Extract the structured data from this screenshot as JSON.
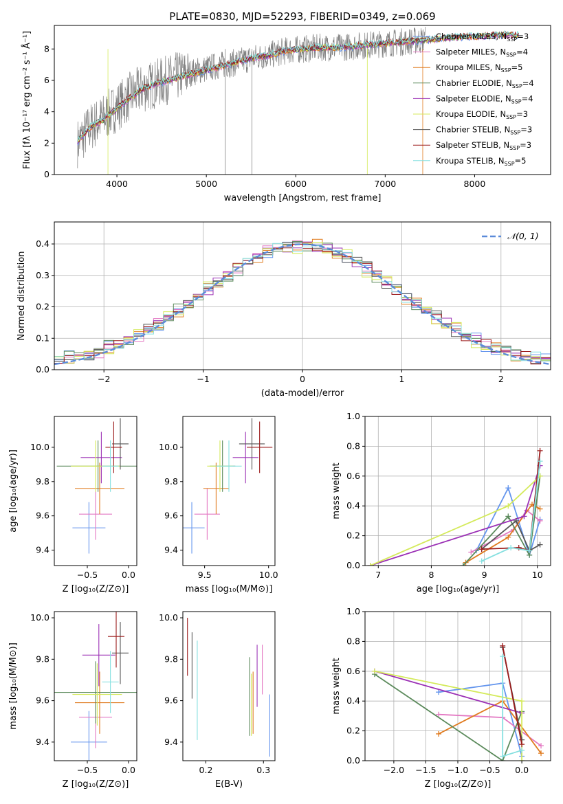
{
  "title": "PLATE=0830, MJD=52293, FIBERID=0349, z=0.069",
  "legend_spectrum": [
    {
      "name": "Chabrier MILES",
      "nssp": "3",
      "color": "#6495ed"
    },
    {
      "name": "Salpeter MILES",
      "nssp": "4",
      "color": "#e377c2"
    },
    {
      "name": "Kroupa MILES",
      "nssp": "5",
      "color": "#e07b1f"
    },
    {
      "name": "Chabrier ELODIE",
      "nssp": "4",
      "color": "#5b8a5b"
    },
    {
      "name": "Salpeter ELODIE",
      "nssp": "4",
      "color": "#9b30b5"
    },
    {
      "name": "Kroupa ELODIE",
      "nssp": "3",
      "color": "#d4ea5a"
    },
    {
      "name": "Chabrier STELIB",
      "nssp": "3",
      "color": "#555555"
    },
    {
      "name": "Salpeter STELIB",
      "nssp": "3",
      "color": "#9c1c1c"
    },
    {
      "name": "Kroupa STELIB",
      "nssp": "5",
      "color": "#86e0e0"
    }
  ],
  "colors": {
    "data": "#808080",
    "gaussian": "#5b8bd9",
    "grid": "#b0b0b0"
  },
  "chart_data": [
    {
      "id": "spectrum",
      "type": "line",
      "xlabel": "wavelength [Angstrom, rest frame]",
      "ylabel": "Flux [fλ 10⁻¹⁷ erg cm⁻² s⁻¹ Å⁻¹]",
      "xlim": [
        3300,
        8850
      ],
      "ylim": [
        0,
        9.5
      ],
      "grid": false,
      "legend": "right",
      "xticks": [
        4000,
        5000,
        6000,
        7000,
        8000
      ],
      "yticks": [
        0,
        2,
        4,
        6,
        8
      ],
      "observed": {
        "x": [
          3560,
          3700,
          3850,
          4000,
          4150,
          4300,
          4500,
          4700,
          4900,
          5100,
          5300,
          5500,
          5700,
          5900,
          6100,
          6300,
          6500,
          6700,
          6900,
          7100,
          7300,
          7450
        ],
        "y": [
          2.0,
          3.0,
          3.6,
          4.3,
          5.0,
          5.5,
          5.9,
          6.3,
          6.6,
          6.9,
          7.1,
          7.4,
          7.6,
          7.9,
          8.0,
          8.1,
          8.1,
          8.2,
          8.3,
          8.4,
          8.5,
          8.6
        ]
      },
      "model": {
        "x": [
          3560,
          3700,
          3850,
          4000,
          4150,
          4300,
          4500,
          4700,
          4900,
          5100,
          5300,
          5500,
          5700,
          5900,
          6100,
          6300,
          6500,
          6700,
          6900,
          7100,
          7300,
          7500,
          7700,
          7900,
          8100,
          8300,
          8500
        ],
        "y": [
          2.1,
          3.0,
          3.5,
          4.2,
          4.9,
          5.5,
          5.9,
          6.2,
          6.5,
          6.8,
          7.1,
          7.4,
          7.6,
          7.9,
          8.0,
          8.1,
          8.1,
          8.2,
          8.3,
          8.4,
          8.5,
          8.6,
          8.7,
          8.8,
          8.8,
          8.9,
          8.9
        ]
      }
    },
    {
      "id": "residuals",
      "type": "histogram",
      "xlabel": "(data-model)/error",
      "ylabel": "Normed distribution",
      "xlim": [
        -2.5,
        2.5
      ],
      "ylim": [
        0,
        0.47
      ],
      "grid": true,
      "legend": "top-right",
      "xticks": [
        -2,
        -1,
        0,
        1,
        2
      ],
      "yticks": [
        0.0,
        0.1,
        0.2,
        0.3,
        0.4
      ],
      "xtick_labels": [
        "−2",
        "−1",
        "0",
        "1",
        "2"
      ],
      "bin_width": 0.1,
      "bin_start": -2.5,
      "reference_curve": {
        "name": "𝒩(0, 1)",
        "mu": 0,
        "sigma": 1
      },
      "series_offsets": [
        0.012,
        -0.008,
        0.015,
        -0.012,
        0.006,
        -0.015,
        0.01,
        -0.004,
        0.008
      ]
    },
    {
      "id": "age_vs_Z",
      "type": "scatter",
      "xlabel": "Z [log₁₀(Z/Z⊙)]",
      "ylabel": "age  [log₁₀(age/yr)]",
      "xlim": [
        -0.9,
        0.1
      ],
      "ylim": [
        9.31,
        10.18
      ],
      "grid": false,
      "xticks": [
        -0.5,
        0.0
      ],
      "xtick_labels": [
        "−0.5",
        "0.0"
      ],
      "yticks": [
        9.4,
        9.6,
        9.8,
        10.0
      ],
      "points": [
        {
          "x": -0.48,
          "y": 9.53,
          "xerr": 0.2,
          "yerr": 0.06
        },
        {
          "x": -0.4,
          "y": 9.61,
          "xerr": 0.2,
          "yerr": 0.06
        },
        {
          "x": -0.35,
          "y": 9.76,
          "xerr": 0.3,
          "yerr": 0.06
        },
        {
          "x": -0.37,
          "y": 9.89,
          "xerr": 0.5,
          "yerr": 0.06
        },
        {
          "x": -0.33,
          "y": 9.94,
          "xerr": 0.25,
          "yerr": 0.06
        },
        {
          "x": -0.4,
          "y": 9.89,
          "xerr": 0.3,
          "yerr": 0.06
        },
        {
          "x": -0.1,
          "y": 10.02,
          "xerr": 0.1,
          "yerr": 0.06
        },
        {
          "x": -0.18,
          "y": 10.0,
          "xerr": 0.1,
          "yerr": 0.06
        },
        {
          "x": -0.22,
          "y": 9.89,
          "xerr": 0.1,
          "yerr": 0.06
        }
      ]
    },
    {
      "id": "age_vs_mass",
      "type": "scatter",
      "xlabel": "mass [log₁₀(M/M⊙)]",
      "ylabel": "",
      "xlim": [
        9.33,
        10.05
      ],
      "ylim": [
        9.31,
        10.18
      ],
      "grid": false,
      "xticks": [
        9.5,
        10.0
      ],
      "xtick_labels": [
        "9.5",
        "10.0"
      ],
      "yticks": [
        9.4,
        9.6,
        9.8,
        10.0
      ],
      "points": [
        {
          "x": 9.4,
          "y": 9.53,
          "xerr": 0.1,
          "yerr": 0.06
        },
        {
          "x": 9.52,
          "y": 9.61,
          "xerr": 0.1,
          "yerr": 0.06
        },
        {
          "x": 9.59,
          "y": 9.76,
          "xerr": 0.1,
          "yerr": 0.06
        },
        {
          "x": 9.64,
          "y": 9.89,
          "xerr": 0.1,
          "yerr": 0.06
        },
        {
          "x": 9.82,
          "y": 9.94,
          "xerr": 0.1,
          "yerr": 0.06
        },
        {
          "x": 9.62,
          "y": 9.89,
          "xerr": 0.1,
          "yerr": 0.06
        },
        {
          "x": 9.87,
          "y": 10.02,
          "xerr": 0.1,
          "yerr": 0.06
        },
        {
          "x": 9.93,
          "y": 10.0,
          "xerr": 0.1,
          "yerr": 0.06
        },
        {
          "x": 9.69,
          "y": 9.89,
          "xerr": 0.1,
          "yerr": 0.06
        }
      ]
    },
    {
      "id": "massweight_vs_age",
      "type": "line",
      "xlabel": "age  [log₁₀(age/yr)]",
      "ylabel": "mass weight",
      "xlim": [
        6.75,
        10.25
      ],
      "ylim": [
        0,
        1.0
      ],
      "grid": true,
      "xticks": [
        7,
        8,
        9,
        10
      ],
      "yticks": [
        0.0,
        0.2,
        0.4,
        0.6,
        0.8,
        1.0
      ],
      "series": [
        {
          "x": [
            8.85,
            9.45,
            9.85,
            10.05
          ],
          "y": [
            0.1,
            0.52,
            0.07,
            0.31
          ]
        },
        {
          "x": [
            8.75,
            9.55,
            9.8,
            10.05
          ],
          "y": [
            0.09,
            0.24,
            0.37,
            0.3
          ]
        },
        {
          "x": [
            8.65,
            9.45,
            9.9,
            10.05
          ],
          "y": [
            0.02,
            0.19,
            0.41,
            0.38
          ]
        },
        {
          "x": [
            8.6,
            9.45,
            9.85,
            10.05
          ],
          "y": [
            0.0,
            0.33,
            0.07,
            0.6
          ]
        },
        {
          "x": [
            6.85,
            9.75,
            10.05
          ],
          "y": [
            0.0,
            0.33,
            0.67
          ]
        },
        {
          "x": [
            6.85,
            9.45,
            10.05
          ],
          "y": [
            0.0,
            0.4,
            0.6
          ]
        },
        {
          "x": [
            8.95,
            9.6,
            9.85,
            10.05
          ],
          "y": [
            0.11,
            0.3,
            0.1,
            0.14
          ]
        },
        {
          "x": [
            8.95,
            9.65,
            9.85,
            10.05
          ],
          "y": [
            0.11,
            0.12,
            0.1,
            0.77
          ]
        },
        {
          "x": [
            8.95,
            9.5,
            9.85,
            10.05
          ],
          "y": [
            0.03,
            0.12,
            0.1,
            0.7
          ]
        }
      ]
    },
    {
      "id": "mass_vs_Z",
      "type": "scatter",
      "xlabel": "Z [log₁₀(Z/Z⊙)]",
      "ylabel": "mass [log₁₀(M/M⊙)]",
      "xlim": [
        -0.9,
        0.1
      ],
      "ylim": [
        9.31,
        10.03
      ],
      "grid": false,
      "xticks": [
        -0.5,
        0.0
      ],
      "xtick_labels": [
        "−0.5",
        "0.0"
      ],
      "yticks": [
        9.4,
        9.6,
        9.8,
        10.0
      ],
      "points": [
        {
          "x": -0.48,
          "y": 9.4,
          "xerr": 0.22,
          "yerr": 0.06
        },
        {
          "x": -0.4,
          "y": 9.52,
          "xerr": 0.2,
          "yerr": 0.06
        },
        {
          "x": -0.35,
          "y": 9.59,
          "xerr": 0.3,
          "yerr": 0.06
        },
        {
          "x": -0.4,
          "y": 9.64,
          "xerr": 0.5,
          "yerr": 0.06
        },
        {
          "x": -0.36,
          "y": 9.82,
          "xerr": 0.2,
          "yerr": 0.06
        },
        {
          "x": -0.38,
          "y": 9.63,
          "xerr": 0.3,
          "yerr": 0.06
        },
        {
          "x": -0.1,
          "y": 9.83,
          "xerr": 0.1,
          "yerr": 0.06
        },
        {
          "x": -0.15,
          "y": 9.91,
          "xerr": 0.1,
          "yerr": 0.06
        },
        {
          "x": -0.22,
          "y": 9.69,
          "xerr": 0.1,
          "yerr": 0.06
        }
      ]
    },
    {
      "id": "mass_vs_ebv",
      "type": "scatter",
      "xlabel": "E(B-V)",
      "ylabel": "",
      "xlim": [
        0.16,
        0.32
      ],
      "ylim": [
        9.31,
        10.03
      ],
      "grid": false,
      "xticks": [
        0.2,
        0.3
      ],
      "xtick_labels": [
        "0.2",
        "0.3"
      ],
      "yticks": [
        9.4,
        9.6,
        9.8,
        10.0
      ],
      "points": [
        {
          "x": 0.311,
          "y": 9.48,
          "xerr": 0,
          "yerr": 0.15
        },
        {
          "x": 0.298,
          "y": 9.75,
          "xerr": 0,
          "yerr": 0.12
        },
        {
          "x": 0.282,
          "y": 9.59,
          "xerr": 0,
          "yerr": 0.15
        },
        {
          "x": 0.276,
          "y": 9.62,
          "xerr": 0,
          "yerr": 0.19
        },
        {
          "x": 0.289,
          "y": 9.72,
          "xerr": 0,
          "yerr": 0.15
        },
        {
          "x": 0.279,
          "y": 9.58,
          "xerr": 0,
          "yerr": 0.15
        },
        {
          "x": 0.176,
          "y": 9.77,
          "xerr": 0,
          "yerr": 0.16
        },
        {
          "x": 0.168,
          "y": 9.86,
          "xerr": 0,
          "yerr": 0.14
        },
        {
          "x": 0.185,
          "y": 9.65,
          "xerr": 0,
          "yerr": 0.24
        }
      ]
    },
    {
      "id": "massweight_vs_Z",
      "type": "line",
      "xlabel": "Z [log₁₀(Z/Z⊙)]",
      "ylabel": "mass weight",
      "xlim": [
        -2.45,
        0.45
      ],
      "ylim": [
        0,
        1.0
      ],
      "grid": true,
      "xticks": [
        -2.0,
        -1.5,
        -1.0,
        -0.5,
        0.0
      ],
      "xtick_labels": [
        "−2.0",
        "−1.5",
        "−1.0",
        "−0.5",
        "0.0"
      ],
      "yticks": [
        0.0,
        0.2,
        0.4,
        0.6,
        0.8,
        1.0
      ],
      "series": [
        {
          "x": [
            -1.3,
            -0.3,
            0.0
          ],
          "y": [
            0.46,
            0.52,
            0.03
          ]
        },
        {
          "x": [
            -1.3,
            -0.3,
            0.3
          ],
          "y": [
            0.31,
            0.29,
            0.1
          ]
        },
        {
          "x": [
            -1.3,
            -0.3,
            0.3
          ],
          "y": [
            0.18,
            0.4,
            0.05
          ]
        },
        {
          "x": [
            -2.3,
            -0.3,
            0.0
          ],
          "y": [
            0.58,
            0.0,
            0.33
          ]
        },
        {
          "x": [
            -2.3,
            0.0
          ],
          "y": [
            0.6,
            0.32
          ]
        },
        {
          "x": [
            -2.3,
            0.0,
            0.0
          ],
          "y": [
            0.6,
            0.4,
            0.0
          ]
        },
        {
          "x": [
            -0.3,
            0.0
          ],
          "y": [
            0.76,
            0.14
          ]
        },
        {
          "x": [
            -0.3,
            0.0
          ],
          "y": [
            0.77,
            0.11
          ]
        },
        {
          "x": [
            -0.3,
            -0.3,
            0.0
          ],
          "y": [
            0.7,
            0.03,
            0.07
          ]
        }
      ]
    }
  ]
}
